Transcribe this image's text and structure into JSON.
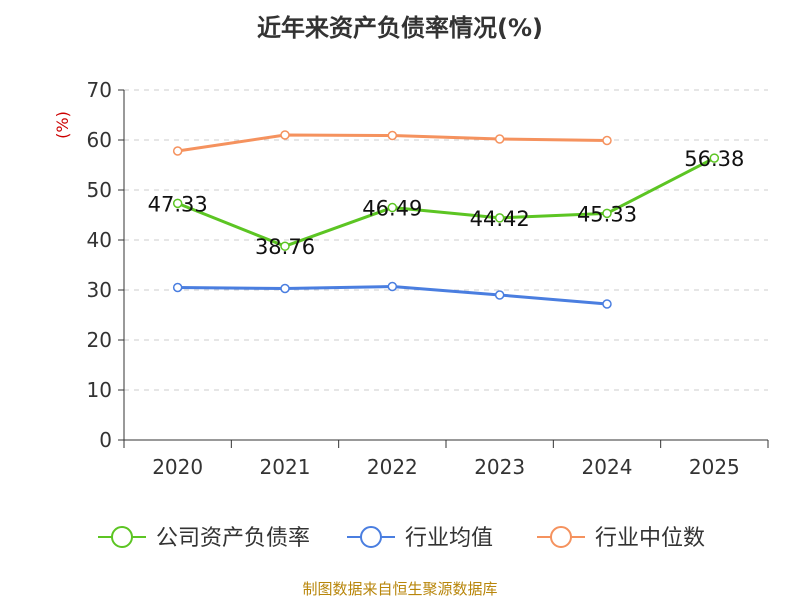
{
  "chart_data": {
    "type": "line",
    "title": "近年来资产负债率情况(%)",
    "ylabel": "(%)",
    "categories": [
      "2020",
      "2021",
      "2022",
      "2023",
      "2024",
      "2025"
    ],
    "ylim": [
      0,
      70
    ],
    "yticks": [
      "0",
      "10",
      "20",
      "30",
      "40",
      "50",
      "60",
      "70"
    ],
    "grid": true,
    "legend_position": "bottom",
    "series": [
      {
        "name": "公司资产负债率",
        "color": "#5cc523",
        "values": [
          47.33,
          38.76,
          46.49,
          44.42,
          45.33,
          56.38
        ],
        "labels": [
          "47.33",
          "38.76",
          "46.49",
          "44.42",
          "45.33",
          "56.38"
        ]
      },
      {
        "name": "行业均值",
        "color": "#4a7ee0",
        "values": [
          30.5,
          30.3,
          30.7,
          29.0,
          27.2,
          null
        ]
      },
      {
        "name": "行业中位数",
        "color": "#f5925e",
        "values": [
          57.8,
          61.0,
          60.9,
          60.2,
          59.9,
          null
        ]
      }
    ]
  },
  "footer": {
    "source": "制图数据来自恒生聚源数据库"
  }
}
